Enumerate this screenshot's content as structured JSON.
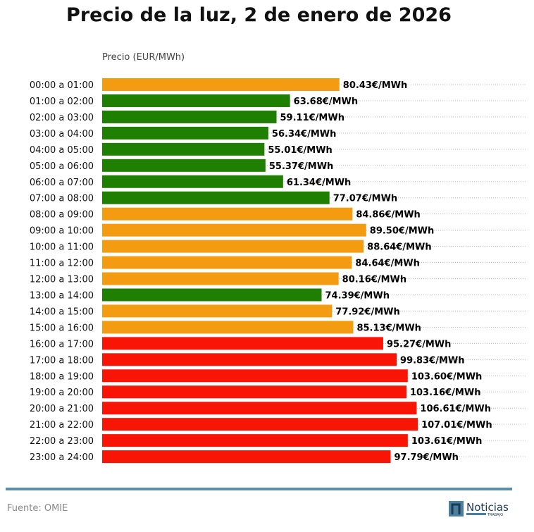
{
  "chart_data": {
    "type": "bar",
    "orientation": "horizontal",
    "title": "Precio de la luz, 2 de enero de 2026",
    "xlabel": "Precio (EUR/MWh)",
    "ylabel": "",
    "xlim": [
      0,
      144
    ],
    "grid": "dotted horizontal",
    "value_suffix": "€/MWh",
    "categories": [
      "00:00 a 01:00",
      "01:00 a 02:00",
      "02:00 a 03:00",
      "03:00 a 04:00",
      "04:00 a 05:00",
      "05:00 a 06:00",
      "06:00 a 07:00",
      "07:00 a 08:00",
      "08:00 a 09:00",
      "09:00 a 10:00",
      "10:00 a 11:00",
      "11:00 a 12:00",
      "12:00 a 13:00",
      "13:00 a 14:00",
      "14:00 a 15:00",
      "15:00 a 16:00",
      "16:00 a 17:00",
      "17:00 a 18:00",
      "18:00 a 19:00",
      "19:00 a 20:00",
      "20:00 a 21:00",
      "21:00 a 22:00",
      "22:00 a 23:00",
      "23:00 a 24:00"
    ],
    "values": [
      80.43,
      63.68,
      59.11,
      56.34,
      55.01,
      55.37,
      61.34,
      77.07,
      84.86,
      89.5,
      88.64,
      84.64,
      80.16,
      74.39,
      77.92,
      85.13,
      95.27,
      99.83,
      103.6,
      103.16,
      106.61,
      107.01,
      103.61,
      97.79
    ],
    "data_labels": [
      "80.43€/MWh",
      "63.68€/MWh",
      "59.11€/MWh",
      "56.34€/MWh",
      "55.01€/MWh",
      "55.37€/MWh",
      "61.34€/MWh",
      "77.07€/MWh",
      "84.86€/MWh",
      "89.50€/MWh",
      "88.64€/MWh",
      "84.64€/MWh",
      "80.16€/MWh",
      "74.39€/MWh",
      "77.92€/MWh",
      "85.13€/MWh",
      "95.27€/MWh",
      "99.83€/MWh",
      "103.60€/MWh",
      "103.16€/MWh",
      "106.61€/MWh",
      "107.01€/MWh",
      "103.61€/MWh",
      "97.79€/MWh"
    ],
    "bar_colors": [
      "orange",
      "green",
      "green",
      "green",
      "green",
      "green",
      "green",
      "green",
      "orange",
      "orange",
      "orange",
      "orange",
      "orange",
      "green",
      "orange",
      "orange",
      "red",
      "red",
      "red",
      "red",
      "red",
      "red",
      "red",
      "red"
    ],
    "colors": {
      "green": "#1f7f00",
      "orange": "#f39c12",
      "red": "#f81505"
    }
  },
  "footer": {
    "source": "Fuente: OMIE",
    "logo_text": "Noticias",
    "logo_subtext": "TRABAJO"
  },
  "accent_color": "#5b8fa8"
}
